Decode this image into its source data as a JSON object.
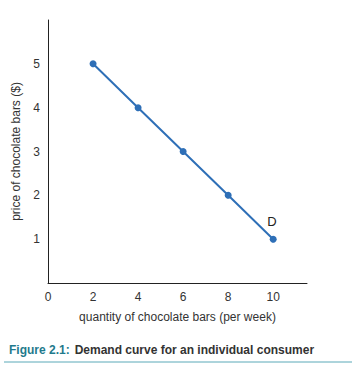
{
  "chart_data": {
    "type": "line",
    "caption_label": "Figure 2.1:",
    "title": "Demand curve for an individual consumer",
    "x_label": "quantity of chocolate bars (per week)",
    "y_label": "price of chocolate bars ($)",
    "x": [
      2,
      4,
      6,
      8,
      10
    ],
    "series": [
      {
        "name": "D",
        "color": "#2e6fb7",
        "values": [
          5,
          4,
          3,
          2,
          1
        ]
      }
    ],
    "xlim": [
      0,
      11.5
    ],
    "xticks": [
      0,
      2,
      4,
      6,
      8,
      10
    ],
    "ylim": [
      0,
      6
    ],
    "yticks": [
      1,
      2,
      3,
      4,
      5
    ],
    "grid": false,
    "marker": "circle"
  }
}
